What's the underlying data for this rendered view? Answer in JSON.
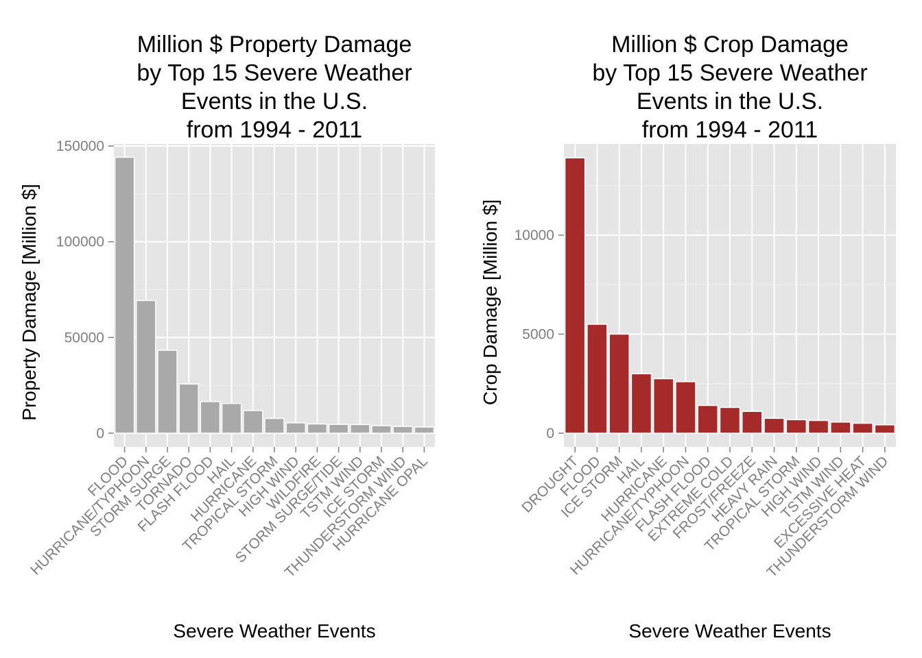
{
  "chart_data": [
    {
      "type": "bar",
      "title": [
        "Million $ Property Damage",
        "by Top 15 Severe Weather",
        "Events in the U.S.",
        "from 1994 - 2011"
      ],
      "xlabel": "Severe Weather Events",
      "ylabel": "Property Damage [Million $]",
      "ylim": [
        0,
        150000
      ],
      "yticks": [
        "0",
        "50000",
        "100000",
        "150000"
      ],
      "grid": true,
      "bar_color": "#a9a9a9",
      "categories": [
        "FLOOD",
        "HURRICANE/TYPHOON",
        "STORM SURGE",
        "TORNADO",
        "FLASH FLOOD",
        "HAIL",
        "HURRICANE",
        "TROPICAL STORM",
        "HIGH WIND",
        "WILDFIRE",
        "STORM SURGE/TIDE",
        "TSTM WIND",
        "ICE STORM",
        "THUNDERSTORM WIND",
        "HURRICANE OPAL"
      ],
      "values": [
        144100,
        69300,
        43300,
        25700,
        16500,
        15500,
        11800,
        7700,
        5400,
        4800,
        4600,
        4500,
        3900,
        3500,
        3200
      ]
    },
    {
      "type": "bar",
      "title": [
        "Million $ Crop Damage",
        "by Top 15 Severe Weather",
        "Events in the U.S.",
        "from 1994 - 2011"
      ],
      "xlabel": "Severe Weather Events",
      "ylabel": "Crop Damage [Million $]",
      "ylim": [
        0,
        14500
      ],
      "yticks": [
        "0",
        "5000",
        "10000"
      ],
      "grid": true,
      "bar_color": "#a52a2a",
      "categories": [
        "DROUGHT",
        "FLOOD",
        "ICE STORM",
        "HAIL",
        "HURRICANE",
        "HURRICANE/TYPHOON",
        "FLASH FLOOD",
        "EXTREME COLD",
        "FROST/FREEZE",
        "HEAVY RAIN",
        "TROPICAL STORM",
        "HIGH WIND",
        "TSTM WIND",
        "EXCESSIVE HEAT",
        "THUNDERSTORM WIND"
      ],
      "values": [
        13900,
        5500,
        5000,
        3000,
        2750,
        2600,
        1400,
        1300,
        1100,
        750,
        680,
        640,
        560,
        500,
        420
      ]
    }
  ]
}
